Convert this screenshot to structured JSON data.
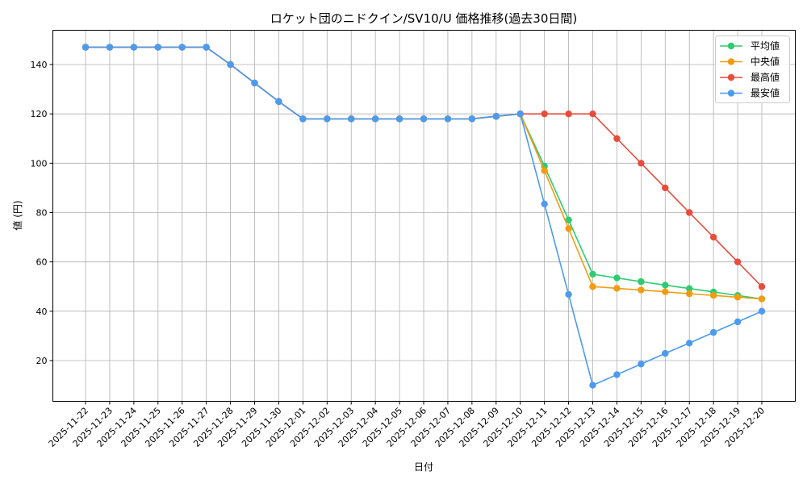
{
  "chart_data": {
    "type": "line",
    "title": "ロケット団のニドクイン/SV10/U 価格推移(過去30日間)",
    "xlabel": "日付",
    "ylabel": "値 (円)",
    "ylim": [
      3.15,
      153.5
    ],
    "yticks": [
      20,
      40,
      60,
      80,
      100,
      120,
      140
    ],
    "grid": true,
    "legend_position": "upper right",
    "x": [
      "2025-11-22",
      "2025-11-23",
      "2025-11-24",
      "2025-11-25",
      "2025-11-26",
      "2025-11-27",
      "2025-11-28",
      "2025-11-29",
      "2025-11-30",
      "2025-12-01",
      "2025-12-02",
      "2025-12-03",
      "2025-12-04",
      "2025-12-05",
      "2025-12-06",
      "2025-12-07",
      "2025-12-08",
      "2025-12-09",
      "2025-12-10",
      "2025-12-11",
      "2025-12-12",
      "2025-12-13",
      "2025-12-14",
      "2025-12-15",
      "2025-12-16",
      "2025-12-17",
      "2025-12-18",
      "2025-12-19",
      "2025-12-20"
    ],
    "series": [
      {
        "name": "平均値",
        "color": "#2ecc71",
        "values": [
          147,
          147,
          147,
          147,
          147,
          147,
          140,
          132.5,
          125,
          118,
          118,
          118,
          118,
          118,
          118,
          118,
          118,
          119,
          120,
          98.8,
          77,
          55,
          53.5,
          52,
          50.6,
          49.2,
          47.8,
          46.4,
          45
        ]
      },
      {
        "name": "中央値",
        "color": "#f39c12",
        "values": [
          147,
          147,
          147,
          147,
          147,
          147,
          140,
          132.5,
          125,
          118,
          118,
          118,
          118,
          118,
          118,
          118,
          118,
          119,
          120,
          97,
          73.5,
          50,
          49.3,
          48.6,
          47.9,
          47.1,
          46.4,
          45.7,
          45
        ]
      },
      {
        "name": "最高値",
        "color": "#e74c3c",
        "values": [
          147,
          147,
          147,
          147,
          147,
          147,
          140,
          132.5,
          125,
          118,
          118,
          118,
          118,
          118,
          118,
          118,
          118,
          119,
          120,
          120,
          120,
          120,
          110,
          100,
          90,
          80,
          70,
          60,
          50
        ]
      },
      {
        "name": "最安値",
        "color": "#4c9bef",
        "values": [
          147,
          147,
          147,
          147,
          147,
          147,
          140,
          132.5,
          125,
          118,
          118,
          118,
          118,
          118,
          118,
          118,
          118,
          119,
          120,
          83.5,
          46.8,
          10,
          14.3,
          18.6,
          22.9,
          27.1,
          31.4,
          35.7,
          40
        ]
      }
    ]
  }
}
